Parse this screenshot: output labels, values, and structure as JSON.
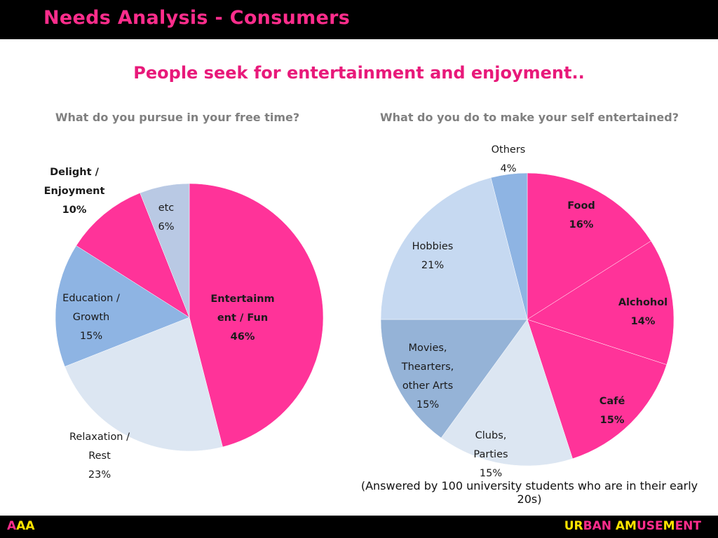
{
  "header": {
    "title": "Needs Analysis - Consumers"
  },
  "headline": "People seek for entertainment and enjoyment..",
  "footnote": "(Answered by 100 university students who are in their early 20s)",
  "footer": {
    "left_parts": [
      {
        "text": "A",
        "color": "#ff2d8c"
      },
      {
        "text": "AA",
        "color": "#ffe400"
      }
    ],
    "right_parts": [
      {
        "text": "UR",
        "color": "#ffe400"
      },
      {
        "text": "BAN ",
        "color": "#ff2d8c"
      },
      {
        "text": "AM",
        "color": "#ffe400"
      },
      {
        "text": "USE",
        "color": "#ff2d8c"
      },
      {
        "text": "M",
        "color": "#ffe400"
      },
      {
        "text": "ENT",
        "color": "#ff2d8c"
      }
    ]
  },
  "chart_data": [
    {
      "type": "pie",
      "title": "What do you pursue in your free time?",
      "slices": [
        {
          "label": [
            "Entertainm",
            "ent / Fun"
          ],
          "value": 46,
          "value_label": "46%",
          "color": "#ff3399",
          "bold": true
        },
        {
          "label": [
            "Relaxation /",
            "Rest"
          ],
          "value": 23,
          "value_label": "23%",
          "color": "#dce6f2",
          "bold": false
        },
        {
          "label": [
            "Education /",
            "Growth"
          ],
          "value": 15,
          "value_label": "15%",
          "color": "#8eb4e3",
          "bold": false
        },
        {
          "label": [
            "Delight /",
            "Enjoyment"
          ],
          "value": 10,
          "value_label": "10%",
          "color": "#ff3399",
          "bold": true
        },
        {
          "label": [
            "etc"
          ],
          "value": 6,
          "value_label": "6%",
          "color": "#b9c9e4",
          "bold": false
        }
      ]
    },
    {
      "type": "pie",
      "title": "What do you do to make your self entertained?",
      "slices": [
        {
          "label": [
            "Food"
          ],
          "value": 16,
          "value_label": "16%",
          "color": "#ff3399",
          "bold": true
        },
        {
          "label": [
            "Alchohol"
          ],
          "value": 14,
          "value_label": "14%",
          "color": "#ff3399",
          "bold": true
        },
        {
          "label": [
            "Café"
          ],
          "value": 15,
          "value_label": "15%",
          "color": "#ff3399",
          "bold": true
        },
        {
          "label": [
            "Clubs,",
            "Parties"
          ],
          "value": 15,
          "value_label": "15%",
          "color": "#dce6f2",
          "bold": false
        },
        {
          "label": [
            "Movies,",
            "Thearters,",
            "other Arts"
          ],
          "value": 15,
          "value_label": "15%",
          "color": "#95b3d7",
          "bold": false
        },
        {
          "label": [
            "Hobbies"
          ],
          "value": 21,
          "value_label": "21%",
          "color": "#c6d9f1",
          "bold": false
        },
        {
          "label": [
            "Others"
          ],
          "value": 4,
          "value_label": "4%",
          "color": "#8eb4e3",
          "bold": false
        }
      ]
    }
  ]
}
